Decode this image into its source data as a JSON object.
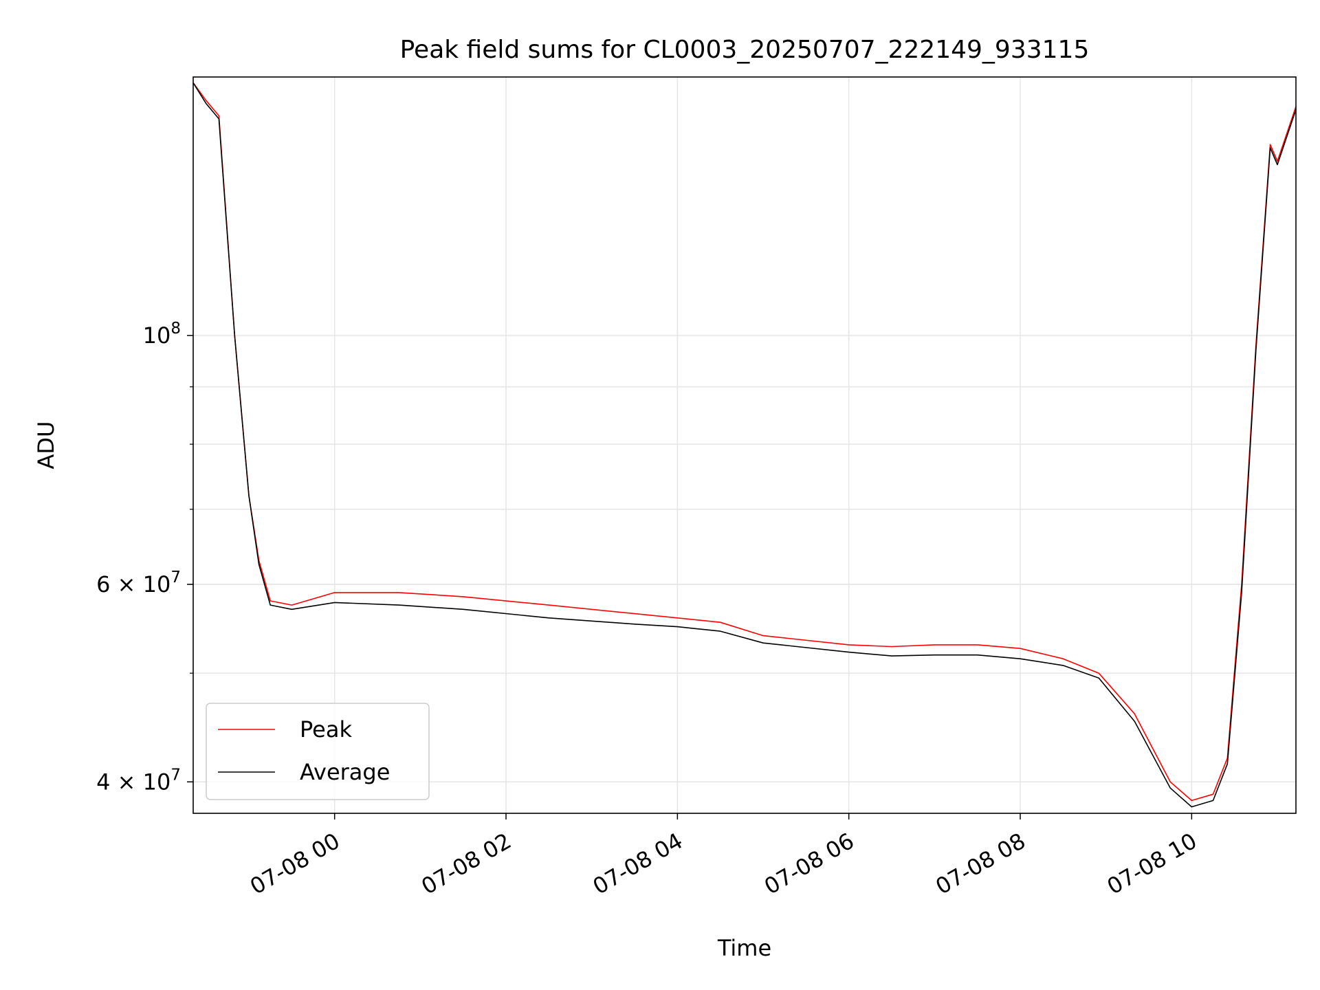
{
  "chart_data": {
    "type": "line",
    "title": "Peak field sums for CL0003_20250707_222149_933115",
    "xlabel": "Time",
    "ylabel": "ADU",
    "y_scale": "log",
    "ylim": [
      37500000,
      170000000
    ],
    "xlim": [
      "07-07 22:21",
      "07-08 11:13"
    ],
    "x_ticks": [
      {
        "t": "07-08 00:00",
        "label": "07-08 00"
      },
      {
        "t": "07-08 02:00",
        "label": "07-08 02"
      },
      {
        "t": "07-08 04:00",
        "label": "07-08 04"
      },
      {
        "t": "07-08 06:00",
        "label": "07-08 06"
      },
      {
        "t": "07-08 08:00",
        "label": "07-08 08"
      },
      {
        "t": "07-08 10:00",
        "label": "07-08 10"
      }
    ],
    "y_major_ticks": [
      {
        "value": 40000000,
        "mantissa": "4",
        "exp": "7"
      },
      {
        "value": 60000000,
        "mantissa": "6",
        "exp": "7"
      },
      {
        "value": 100000000,
        "mantissa": "",
        "exp": "8"
      }
    ],
    "y_minor_ticks": [
      40000000,
      50000000,
      60000000,
      70000000,
      80000000,
      90000000,
      200000000
    ],
    "grid": true,
    "legend": {
      "position": "lower-left"
    },
    "series": [
      {
        "name": "Peak",
        "color": "#ff0000",
        "points": [
          [
            "07-07 22:21",
            168000000
          ],
          [
            "07-07 22:30",
            162000000
          ],
          [
            "07-07 22:39",
            157000000
          ],
          [
            "07-07 22:50",
            100000000
          ],
          [
            "07-07 23:00",
            72000000
          ],
          [
            "07-07 23:07",
            63000000
          ],
          [
            "07-07 23:15",
            58000000
          ],
          [
            "07-07 23:30",
            57500000
          ],
          [
            "07-08 00:00",
            59000000
          ],
          [
            "07-08 00:45",
            59000000
          ],
          [
            "07-08 01:30",
            58500000
          ],
          [
            "07-08 02:30",
            57500000
          ],
          [
            "07-08 03:30",
            56500000
          ],
          [
            "07-08 04:00",
            56000000
          ],
          [
            "07-08 04:30",
            55500000
          ],
          [
            "07-08 05:00",
            54000000
          ],
          [
            "07-08 06:00",
            53000000
          ],
          [
            "07-08 06:30",
            52800000
          ],
          [
            "07-08 07:00",
            53000000
          ],
          [
            "07-08 07:30",
            53000000
          ],
          [
            "07-08 08:00",
            52600000
          ],
          [
            "07-08 08:30",
            51500000
          ],
          [
            "07-08 08:55",
            50000000
          ],
          [
            "07-08 09:20",
            46000000
          ],
          [
            "07-08 09:45",
            40000000
          ],
          [
            "07-08 10:00",
            38500000
          ],
          [
            "07-08 10:15",
            39000000
          ],
          [
            "07-08 10:25",
            42000000
          ],
          [
            "07-08 10:35",
            60000000
          ],
          [
            "07-08 10:45",
            98000000
          ],
          [
            "07-08 10:55",
            148000000
          ],
          [
            "07-08 11:00",
            143000000
          ],
          [
            "07-08 11:13",
            160000000
          ]
        ]
      },
      {
        "name": "Average",
        "color": "#000000",
        "points": [
          [
            "07-07 22:21",
            168000000
          ],
          [
            "07-07 22:30",
            161000000
          ],
          [
            "07-07 22:39",
            156000000
          ],
          [
            "07-07 22:50",
            100000000
          ],
          [
            "07-07 23:00",
            72000000
          ],
          [
            "07-07 23:07",
            62500000
          ],
          [
            "07-07 23:15",
            57500000
          ],
          [
            "07-07 23:30",
            57000000
          ],
          [
            "07-08 00:00",
            57800000
          ],
          [
            "07-08 00:45",
            57500000
          ],
          [
            "07-08 01:30",
            57000000
          ],
          [
            "07-08 02:30",
            56000000
          ],
          [
            "07-08 03:30",
            55300000
          ],
          [
            "07-08 04:00",
            55000000
          ],
          [
            "07-08 04:30",
            54500000
          ],
          [
            "07-08 05:00",
            53200000
          ],
          [
            "07-08 06:00",
            52200000
          ],
          [
            "07-08 06:30",
            51800000
          ],
          [
            "07-08 07:00",
            51900000
          ],
          [
            "07-08 07:30",
            51900000
          ],
          [
            "07-08 08:00",
            51500000
          ],
          [
            "07-08 08:30",
            50800000
          ],
          [
            "07-08 08:55",
            49500000
          ],
          [
            "07-08 09:20",
            45300000
          ],
          [
            "07-08 09:45",
            39500000
          ],
          [
            "07-08 10:00",
            38000000
          ],
          [
            "07-08 10:15",
            38500000
          ],
          [
            "07-08 10:25",
            41500000
          ],
          [
            "07-08 10:35",
            59000000
          ],
          [
            "07-08 10:45",
            97000000
          ],
          [
            "07-08 10:55",
            147000000
          ],
          [
            "07-08 11:00",
            142000000
          ],
          [
            "07-08 11:13",
            159000000
          ]
        ]
      }
    ]
  }
}
